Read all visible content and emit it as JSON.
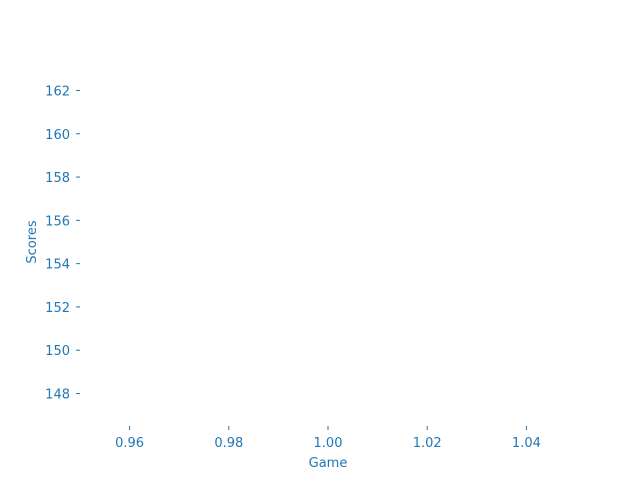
{
  "chart_data": {
    "type": "scatter",
    "title": "",
    "xlabel": "Game",
    "ylabel": "Scores",
    "xlim": [
      0.95,
      1.05
    ],
    "ylim": [
      146.5,
      163.5
    ],
    "xticks": [
      0.96,
      0.98,
      1.0,
      1.02,
      1.04
    ],
    "xtick_labels": [
      "0.96",
      "0.98",
      "1.00",
      "1.02",
      "1.04"
    ],
    "yticks": [
      148,
      150,
      152,
      154,
      156,
      158,
      160,
      162
    ],
    "ytick_labels": [
      "148",
      "150",
      "152",
      "154",
      "156",
      "158",
      "160",
      "162"
    ],
    "grid": false,
    "series": []
  },
  "colors": {
    "axis": "#1f77b4",
    "background": "#ffffff"
  }
}
